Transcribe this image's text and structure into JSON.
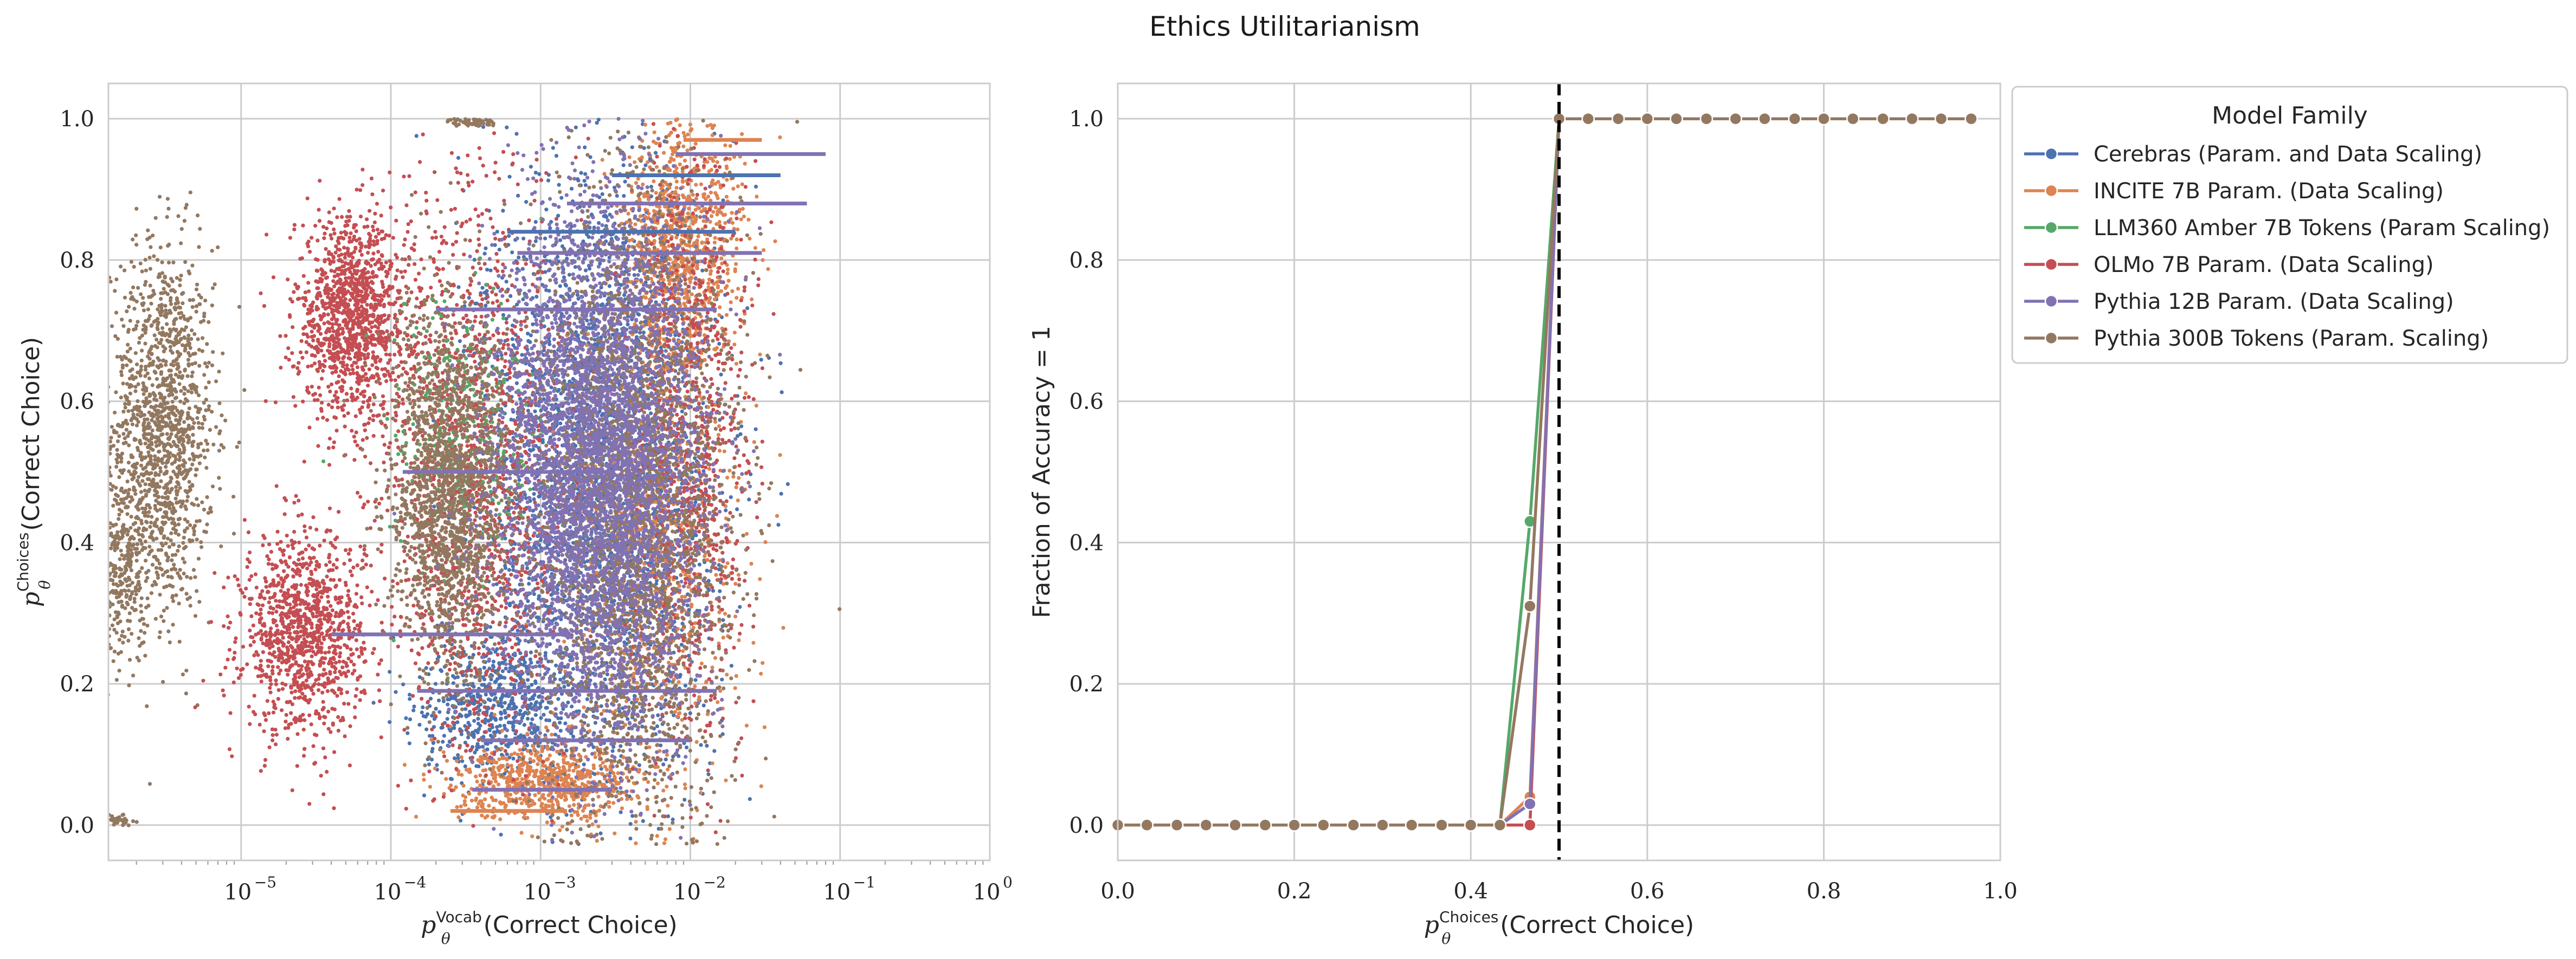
{
  "figure_title": "Ethics Utilitarianism",
  "colors": {
    "Cerebras (Param. and Data Scaling)": "#4c72b0",
    "INCITE 7B Param. (Data Scaling)": "#dd8452",
    "LLM360 Amber 7B Tokens (Param Scaling)": "#55a868",
    "OLMo 7B Param. (Data Scaling)": "#c44e52",
    "Pythia 12B Param. (Data Scaling)": "#8172b3",
    "Pythia 300B Tokens (Param. Scaling)": "#937860",
    "threshold_line": "#000000",
    "grid": "#cccccc"
  },
  "chart_data": [
    {
      "type": "scatter",
      "xscale": "log",
      "xlim": [
        1.3e-06,
        1.0
      ],
      "ylim": [
        -0.05,
        1.05
      ],
      "xticks": [
        1e-05,
        0.0001,
        0.001,
        0.01,
        0.1,
        1.0
      ],
      "xtick_labels": [
        {
          "base": "10",
          "exp": "−5"
        },
        {
          "base": "10",
          "exp": "−4"
        },
        {
          "base": "10",
          "exp": "−3"
        },
        {
          "base": "10",
          "exp": "−2"
        },
        {
          "base": "10",
          "exp": "−1"
        },
        {
          "base": "10",
          "exp": "0"
        }
      ],
      "yticks": [
        0.0,
        0.2,
        0.4,
        0.6,
        0.8,
        1.0
      ],
      "ytick_labels": [
        "0.0",
        "0.2",
        "0.4",
        "0.6",
        "0.8",
        "1.0"
      ],
      "xlabel": {
        "p": "p",
        "sub": "θ",
        "sup": "Vocab",
        "text": "(Correct Choice)"
      },
      "ylabel": {
        "p": "p",
        "sub": "θ",
        "sup": "Choices",
        "text": "(Correct Choice)"
      },
      "grid": true,
      "clusters": [
        {
          "series": "Pythia 300B Tokens (Param. Scaling)",
          "x_center": 3e-06,
          "x_spread_log10": 0.17,
          "y_center": 0.56,
          "y_spread": 0.13,
          "n": 1400
        },
        {
          "series": "Pythia 300B Tokens (Param. Scaling)",
          "x_center": 1.6e-06,
          "x_spread_log10": 0.08,
          "y_center": 0.37,
          "y_spread": 0.07,
          "n": 300
        },
        {
          "series": "Pythia 300B Tokens (Param. Scaling)",
          "x_center": 1.5e-06,
          "x_spread_log10": 0.05,
          "y_center": 0.007,
          "y_spread": 0.003,
          "n": 40
        },
        {
          "series": "Pythia 300B Tokens (Param. Scaling)",
          "x_center": 0.00035,
          "x_spread_log10": 0.08,
          "y_center": 0.995,
          "y_spread": 0.003,
          "n": 60
        },
        {
          "series": "OLMo 7B Param. (Data Scaling)",
          "x_center": 5.5e-05,
          "x_spread_log10": 0.19,
          "y_center": 0.72,
          "y_spread": 0.07,
          "n": 1200
        },
        {
          "series": "OLMo 7B Param. (Data Scaling)",
          "x_center": 2.6e-05,
          "x_spread_log10": 0.2,
          "y_center": 0.27,
          "y_spread": 0.07,
          "n": 1100
        },
        {
          "series": "Cerebras (Param. and Data Scaling)",
          "x_center": 0.0025,
          "x_spread_log10": 0.38,
          "y_center": 0.5,
          "y_spread": 0.22,
          "n": 2600
        },
        {
          "series": "Cerebras (Param. and Data Scaling)",
          "x_center": 0.0005,
          "x_spread_log10": 0.25,
          "y_center": 0.17,
          "y_spread": 0.05,
          "n": 600
        },
        {
          "series": "INCITE 7B Param. (Data Scaling)",
          "x_center": 0.009,
          "x_spread_log10": 0.2,
          "y_center": 0.82,
          "y_spread": 0.09,
          "n": 900
        },
        {
          "series": "INCITE 7B Param. (Data Scaling)",
          "x_center": 0.0011,
          "x_spread_log10": 0.3,
          "y_center": 0.06,
          "y_spread": 0.025,
          "n": 700
        },
        {
          "series": "INCITE 7B Param. (Data Scaling)",
          "x_center": 0.006,
          "x_spread_log10": 0.28,
          "y_center": 0.4,
          "y_spread": 0.18,
          "n": 800
        },
        {
          "series": "OLMo 7B Param. (Data Scaling)",
          "x_center": 0.00035,
          "x_spread_log10": 0.32,
          "y_center": 0.5,
          "y_spread": 0.2,
          "n": 1500
        },
        {
          "series": "OLMo 7B Param. (Data Scaling)",
          "x_center": 0.01,
          "x_spread_log10": 0.2,
          "y_center": 0.55,
          "y_spread": 0.22,
          "n": 900
        },
        {
          "series": "LLM360 Amber 7B Tokens (Param Scaling)",
          "x_center": 0.0003,
          "x_spread_log10": 0.25,
          "y_center": 0.55,
          "y_spread": 0.1,
          "n": 300
        },
        {
          "series": "Pythia 300B Tokens (Param. Scaling)",
          "x_center": 0.00025,
          "x_spread_log10": 0.2,
          "y_center": 0.47,
          "y_spread": 0.13,
          "n": 1800
        },
        {
          "series": "Pythia 300B Tokens (Param. Scaling)",
          "x_center": 0.004,
          "x_spread_log10": 0.33,
          "y_center": 0.45,
          "y_spread": 0.23,
          "n": 3000
        },
        {
          "series": "Pythia 12B Param. (Data Scaling)",
          "x_center": 0.0024,
          "x_spread_log10": 0.33,
          "y_center": 0.5,
          "y_spread": 0.19,
          "n": 4200
        }
      ],
      "bands": [
        {
          "series": "Pythia 12B Param. (Data Scaling)",
          "y": 0.95,
          "x_from": 0.008,
          "x_to": 0.08
        },
        {
          "series": "Pythia 12B Param. (Data Scaling)",
          "y": 0.88,
          "x_from": 0.0015,
          "x_to": 0.06
        },
        {
          "series": "Pythia 12B Param. (Data Scaling)",
          "y": 0.81,
          "x_from": 0.0007,
          "x_to": 0.03
        },
        {
          "series": "Pythia 12B Param. (Data Scaling)",
          "y": 0.73,
          "x_from": 0.0002,
          "x_to": 0.015
        },
        {
          "series": "Pythia 12B Param. (Data Scaling)",
          "y": 0.5,
          "x_from": 0.00012,
          "x_to": 0.003
        },
        {
          "series": "Pythia 12B Param. (Data Scaling)",
          "y": 0.27,
          "x_from": 4e-05,
          "x_to": 0.0015
        },
        {
          "series": "Pythia 12B Param. (Data Scaling)",
          "y": 0.19,
          "x_from": 0.00015,
          "x_to": 0.015
        },
        {
          "series": "Pythia 12B Param. (Data Scaling)",
          "y": 0.12,
          "x_from": 0.0004,
          "x_to": 0.01
        },
        {
          "series": "Pythia 12B Param. (Data Scaling)",
          "y": 0.05,
          "x_from": 0.00035,
          "x_to": 0.003
        },
        {
          "series": "Cerebras (Param. and Data Scaling)",
          "y": 0.92,
          "x_from": 0.003,
          "x_to": 0.04
        },
        {
          "series": "Cerebras (Param. and Data Scaling)",
          "y": 0.84,
          "x_from": 0.0006,
          "x_to": 0.02
        },
        {
          "series": "INCITE 7B Param. (Data Scaling)",
          "y": 0.97,
          "x_from": 0.009,
          "x_to": 0.03
        },
        {
          "series": "INCITE 7B Param. (Data Scaling)",
          "y": 0.02,
          "x_from": 0.00025,
          "x_to": 0.0015
        }
      ]
    },
    {
      "type": "line",
      "xlim": [
        0.0,
        1.0
      ],
      "ylim": [
        -0.05,
        1.05
      ],
      "xticks": [
        0.0,
        0.2,
        0.4,
        0.6,
        0.8,
        1.0
      ],
      "xtick_labels": [
        "0.0",
        "0.2",
        "0.4",
        "0.6",
        "0.8",
        "1.0"
      ],
      "yticks": [
        0.0,
        0.2,
        0.4,
        0.6,
        0.8,
        1.0
      ],
      "ytick_labels": [
        "0.0",
        "0.2",
        "0.4",
        "0.6",
        "0.8",
        "1.0"
      ],
      "xlabel": {
        "p": "p",
        "sub": "θ",
        "sup": "Choices",
        "text": "(Correct Choice)"
      },
      "ylabel": "Fraction of Accuracy = 1",
      "grid": true,
      "vline": {
        "x": 0.5,
        "style": "dashed"
      },
      "x": [
        0.0,
        0.033,
        0.067,
        0.1,
        0.133,
        0.167,
        0.2,
        0.233,
        0.267,
        0.3,
        0.333,
        0.367,
        0.4,
        0.433,
        0.467,
        0.5,
        0.533,
        0.567,
        0.6,
        0.633,
        0.667,
        0.7,
        0.733,
        0.767,
        0.8,
        0.833,
        0.867,
        0.9,
        0.933,
        0.967
      ],
      "series": [
        {
          "name": "Cerebras (Param. and Data Scaling)",
          "values": [
            0,
            0,
            0,
            0,
            0,
            0,
            0,
            0,
            0,
            0,
            0,
            0,
            0,
            0,
            0.03,
            1,
            1,
            1,
            1,
            1,
            1,
            1,
            1,
            1,
            1,
            1,
            1,
            1,
            1,
            1
          ]
        },
        {
          "name": "INCITE 7B Param. (Data Scaling)",
          "values": [
            0,
            0,
            0,
            0,
            0,
            0,
            0,
            0,
            0,
            0,
            0,
            0,
            0,
            0,
            0.04,
            1,
            1,
            1,
            1,
            1,
            1,
            1,
            1,
            1,
            1,
            1,
            1,
            1,
            1,
            1
          ]
        },
        {
          "name": "LLM360 Amber 7B Tokens (Param Scaling)",
          "values": [
            0,
            0,
            0,
            0,
            0,
            0,
            0,
            0,
            0,
            0,
            0,
            0,
            0,
            0,
            0.43,
            1,
            1,
            1,
            1,
            1,
            1,
            1,
            1,
            1,
            1,
            1,
            1,
            1,
            1,
            1
          ]
        },
        {
          "name": "OLMo 7B Param. (Data Scaling)",
          "values": [
            0,
            0,
            0,
            0,
            0,
            0,
            0,
            0,
            0,
            0,
            0,
            0,
            0,
            0,
            0.0,
            1,
            1,
            1,
            1,
            1,
            1,
            1,
            1,
            1,
            1,
            1,
            1,
            1,
            1,
            1
          ]
        },
        {
          "name": "Pythia 12B Param. (Data Scaling)",
          "values": [
            0,
            0,
            0,
            0,
            0,
            0,
            0,
            0,
            0,
            0,
            0,
            0,
            0,
            0,
            0.03,
            1,
            1,
            1,
            1,
            1,
            1,
            1,
            1,
            1,
            1,
            1,
            1,
            1,
            1,
            1
          ]
        },
        {
          "name": "Pythia 300B Tokens (Param. Scaling)",
          "values": [
            0,
            0,
            0,
            0,
            0,
            0,
            0,
            0,
            0,
            0,
            0,
            0,
            0,
            0,
            0.31,
            1,
            1,
            1,
            1,
            1,
            1,
            1,
            1,
            1,
            1,
            1,
            1,
            1,
            1,
            1
          ]
        }
      ],
      "legend": {
        "title": "Model Family",
        "placement": "outside upper right",
        "entries": [
          "Cerebras (Param. and Data Scaling)",
          "INCITE 7B Param. (Data Scaling)",
          "LLM360 Amber 7B Tokens (Param Scaling)",
          "OLMo 7B Param. (Data Scaling)",
          "Pythia 12B Param. (Data Scaling)",
          "Pythia 300B Tokens (Param. Scaling)"
        ]
      }
    }
  ]
}
